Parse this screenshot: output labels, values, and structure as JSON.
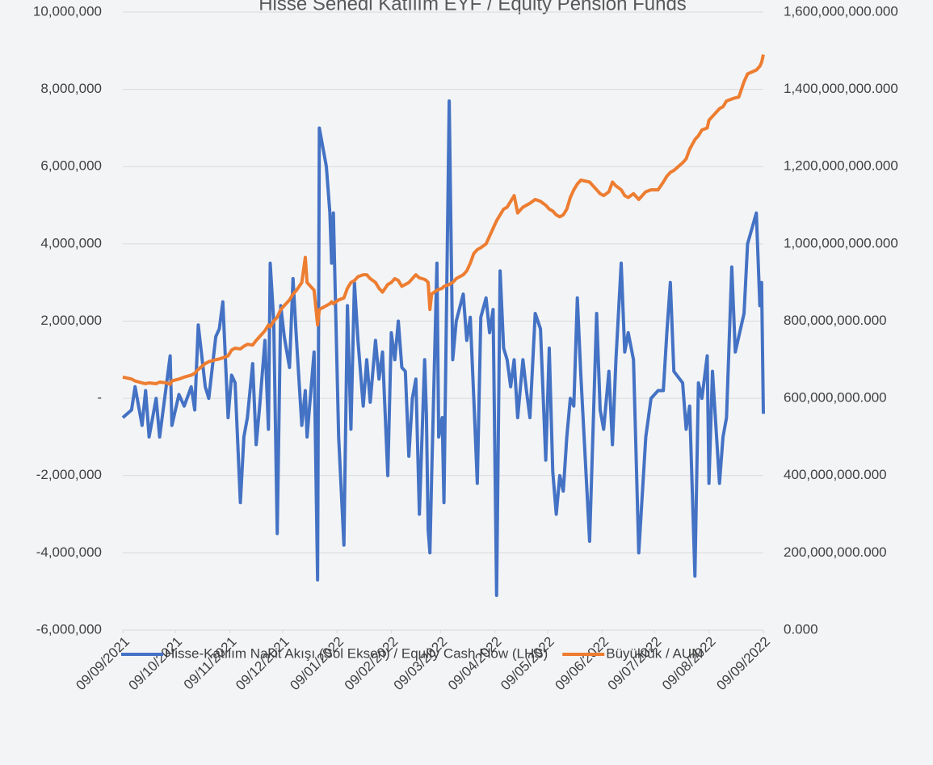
{
  "chart_data": {
    "type": "line",
    "title": "Hisse Senedi Katılım EYF / Equity Pension Funds",
    "x": [
      "09/09/2021",
      "14/09/2021",
      "16/09/2021",
      "20/09/2021",
      "22/09/2021",
      "24/09/2021",
      "28/09/2021",
      "30/09/2021",
      "04/10/2021",
      "06/10/2021",
      "07/10/2021",
      "11/10/2021",
      "14/10/2021",
      "18/10/2021",
      "20/10/2021",
      "22/10/2021",
      "26/10/2021",
      "28/10/2021",
      "01/11/2021",
      "03/11/2021",
      "05/11/2021",
      "08/11/2021",
      "10/11/2021",
      "12/11/2021",
      "15/11/2021",
      "17/11/2021",
      "19/11/2021",
      "22/11/2021",
      "24/11/2021",
      "26/11/2021",
      "29/11/2021",
      "01/12/2021",
      "02/12/2021",
      "04/12/2021",
      "06/12/2021",
      "08/12/2021",
      "10/12/2021",
      "13/12/2021",
      "15/12/2021",
      "17/12/2021",
      "20/12/2021",
      "22/12/2021",
      "23/12/2021",
      "27/12/2021",
      "29/12/2021",
      "30/12/2021",
      "03/01/2022",
      "05/01/2022",
      "06/01/2022",
      "07/01/2022",
      "10/01/2022",
      "13/01/2022",
      "15/01/2022",
      "17/01/2022",
      "19/01/2022",
      "21/01/2022",
      "24/01/2022",
      "26/01/2022",
      "28/01/2022",
      "31/01/2022",
      "02/02/2022",
      "04/02/2022",
      "07/02/2022",
      "09/02/2022",
      "11/02/2022",
      "13/02/2022",
      "15/02/2022",
      "17/02/2022",
      "19/02/2022",
      "21/02/2022",
      "23/02/2022",
      "25/02/2022",
      "28/02/2022",
      "01/03/2022",
      "02/03/2022",
      "03/03/2022",
      "04/03/2022",
      "07/03/2022",
      "08/03/2022",
      "10/03/2022",
      "11/03/2022",
      "14/03/2022",
      "16/03/2022",
      "18/03/2022",
      "22/03/2022",
      "24/03/2022",
      "26/03/2022",
      "28/03/2022",
      "30/03/2022",
      "01/04/2022",
      "04/04/2022",
      "06/04/2022",
      "08/04/2022",
      "10/04/2022",
      "12/04/2022",
      "14/04/2022",
      "16/04/2022",
      "18/04/2022",
      "20/04/2022",
      "22/04/2022",
      "25/04/2022",
      "27/04/2022",
      "29/04/2022",
      "02/05/2022",
      "05/05/2022",
      "08/05/2022",
      "10/05/2022",
      "12/05/2022",
      "14/05/2022",
      "16/05/2022",
      "18/05/2022",
      "20/05/2022",
      "22/05/2022",
      "24/05/2022",
      "26/05/2022",
      "28/05/2022",
      "02/06/2022",
      "06/06/2022",
      "08/06/2022",
      "10/06/2022",
      "13/06/2022",
      "15/06/2022",
      "17/06/2022",
      "20/06/2022",
      "22/06/2022",
      "24/06/2022",
      "27/06/2022",
      "30/06/2022",
      "04/07/2022",
      "07/07/2022",
      "11/07/2022",
      "14/07/2022",
      "16/07/2022",
      "18/07/2022",
      "20/07/2022",
      "25/07/2022",
      "27/07/2022",
      "29/07/2022",
      "01/08/2022",
      "03/08/2022",
      "05/08/2022",
      "08/08/2022",
      "09/08/2022",
      "11/08/2022",
      "15/08/2022",
      "17/08/2022",
      "19/08/2022",
      "22/08/2022",
      "24/08/2022",
      "26/08/2022",
      "29/08/2022",
      "31/08/2022",
      "05/09/2022",
      "07/09/2022",
      "08/09/2022",
      "09/09/2022"
    ],
    "series": [
      {
        "name": "Hisse-Katılım Nakit Akışı (Sol Eksen) / Equity Cash Flow (LHS)",
        "color": "#4472c4",
        "axis": "y",
        "values": [
          -500000,
          -300000,
          300000,
          -700000,
          200000,
          -1000000,
          0,
          -1000000,
          400000,
          1100000,
          -700000,
          100000,
          -200000,
          300000,
          -300000,
          1900000,
          300000,
          0,
          1600000,
          1800000,
          2500000,
          -500000,
          600000,
          400000,
          -2700000,
          -1000000,
          -500000,
          900000,
          -1200000,
          -200000,
          1500000,
          -800000,
          3500000,
          2000000,
          -3500000,
          2400000,
          1600000,
          800000,
          3100000,
          1500000,
          -700000,
          200000,
          -1000000,
          1200000,
          -4700000,
          7000000,
          6000000,
          4800000,
          3500000,
          4800000,
          -1000000,
          -3800000,
          2400000,
          -800000,
          3000000,
          1500000,
          -200000,
          1000000,
          -100000,
          1500000,
          500000,
          1200000,
          -2000000,
          1700000,
          1000000,
          2000000,
          800000,
          700000,
          -1500000,
          0,
          500000,
          -3000000,
          1000000,
          -400000,
          -3400000,
          -4000000,
          -2000000,
          3500000,
          -1000000,
          -500000,
          -2700000,
          7700000,
          1000000,
          2000000,
          2700000,
          1500000,
          2100000,
          0,
          -2200000,
          2100000,
          2600000,
          1700000,
          2300000,
          -5100000,
          3300000,
          1300000,
          1000000,
          300000,
          1000000,
          -500000,
          1000000,
          200000,
          -500000,
          2200000,
          1800000,
          -1600000,
          1300000,
          -1900000,
          -3000000,
          -2000000,
          -2400000,
          -1000000,
          0,
          -200000,
          2600000,
          600000,
          -3700000,
          2200000,
          -300000,
          -800000,
          700000,
          -1200000,
          1000000,
          3500000,
          1200000,
          1700000,
          1000000,
          -4000000,
          -1000000,
          0,
          200000,
          200000,
          1700000,
          3000000,
          700000,
          400000,
          -800000,
          -200000,
          -4600000,
          400000,
          0,
          1100000,
          -2200000,
          700000,
          -2200000,
          -1000000,
          -500000,
          3400000,
          1200000,
          1600000,
          2200000,
          4000000,
          4800000,
          2400000,
          3000000,
          -400000
        ]
      },
      {
        "name": "Büyüklük / AUM",
        "color": "#ed7d31",
        "axis": "y2",
        "values": [
          655000000000,
          650000000000,
          645000000000,
          640000000000,
          638000000000,
          640000000000,
          638000000000,
          642000000000,
          640000000000,
          636000000000,
          645000000000,
          650000000000,
          655000000000,
          660000000000,
          665000000000,
          675000000000,
          690000000000,
          695000000000,
          700000000000,
          702000000000,
          705000000000,
          710000000000,
          725000000000,
          730000000000,
          728000000000,
          735000000000,
          740000000000,
          738000000000,
          750000000000,
          760000000000,
          775000000000,
          790000000000,
          785000000000,
          800000000000,
          810000000000,
          830000000000,
          840000000000,
          855000000000,
          870000000000,
          880000000000,
          900000000000,
          965000000000,
          900000000000,
          880000000000,
          790000000000,
          830000000000,
          840000000000,
          845000000000,
          850000000000,
          845000000000,
          855000000000,
          860000000000,
          885000000000,
          900000000000,
          905000000000,
          915000000000,
          920000000000,
          920000000000,
          910000000000,
          900000000000,
          885000000000,
          875000000000,
          895000000000,
          900000000000,
          910000000000,
          905000000000,
          890000000000,
          895000000000,
          900000000000,
          910000000000,
          920000000000,
          912000000000,
          908000000000,
          905000000000,
          900000000000,
          830000000000,
          870000000000,
          880000000000,
          882000000000,
          885000000000,
          890000000000,
          895000000000,
          900000000000,
          910000000000,
          920000000000,
          930000000000,
          950000000000,
          975000000000,
          985000000000,
          990000000000,
          1000000000000,
          1020000000000,
          1040000000000,
          1060000000000,
          1075000000000,
          1090000000000,
          1095000000000,
          1110000000000,
          1125000000000,
          1080000000000,
          1095000000000,
          1100000000000,
          1105000000000,
          1115000000000,
          1110000000000,
          1100000000000,
          1090000000000,
          1085000000000,
          1075000000000,
          1070000000000,
          1075000000000,
          1090000000000,
          1120000000000,
          1140000000000,
          1155000000000,
          1165000000000,
          1160000000000,
          1140000000000,
          1130000000000,
          1125000000000,
          1135000000000,
          1160000000000,
          1150000000000,
          1140000000000,
          1125000000000,
          1120000000000,
          1130000000000,
          1115000000000,
          1135000000000,
          1140000000000,
          1140000000000,
          1160000000000,
          1175000000000,
          1185000000000,
          1190000000000,
          1210000000000,
          1220000000000,
          1245000000000,
          1270000000000,
          1280000000000,
          1295000000000,
          1300000000000,
          1320000000000,
          1330000000000,
          1350000000000,
          1355000000000,
          1370000000000,
          1375000000000,
          1378000000000,
          1380000000000,
          1420000000000,
          1440000000000,
          1450000000000,
          1460000000000,
          1470000000000,
          1490000000000
        ]
      }
    ],
    "ylim": [
      -6000000,
      10000000
    ],
    "yticks": [
      {
        "value": -6000000,
        "label": "-6,000,000"
      },
      {
        "value": -4000000,
        "label": "-4,000,000"
      },
      {
        "value": -2000000,
        "label": "-2,000,000"
      },
      {
        "value": 0,
        "label": "-"
      },
      {
        "value": 2000000,
        "label": "2,000,000"
      },
      {
        "value": 4000000,
        "label": "4,000,000"
      },
      {
        "value": 6000000,
        "label": "6,000,000"
      },
      {
        "value": 8000000,
        "label": "8,000,000"
      },
      {
        "value": 10000000,
        "label": "10,000,000"
      }
    ],
    "y2lim": [
      0,
      1600000000000
    ],
    "y2ticks": [
      {
        "value": 0,
        "label": "0.000"
      },
      {
        "value": 200000000000,
        "label": "200,000,000.000"
      },
      {
        "value": 400000000000,
        "label": "400,000,000.000"
      },
      {
        "value": 600000000000,
        "label": "600,000,000.000"
      },
      {
        "value": 800000000000,
        "label": "800,000,000.000"
      },
      {
        "value": 1000000000000,
        "label": "1,000,000,000.000"
      },
      {
        "value": 1200000000000,
        "label": "1,200,000,000.000"
      },
      {
        "value": 1400000000000,
        "label": "1,400,000,000.000"
      },
      {
        "value": 1600000000000,
        "label": "1,600,000,000.000"
      }
    ],
    "xlim": [
      "09/09/2021",
      "09/09/2022"
    ],
    "xticks": [
      "09/09/2021",
      "09/10/2021",
      "09/11/2021",
      "09/12/2021",
      "09/01/2022",
      "09/02/2022",
      "09/03/2022",
      "09/04/2022",
      "09/05/2022",
      "09/06/2022",
      "09/07/2022",
      "09/08/2022",
      "09/09/2022"
    ],
    "grid": true
  }
}
